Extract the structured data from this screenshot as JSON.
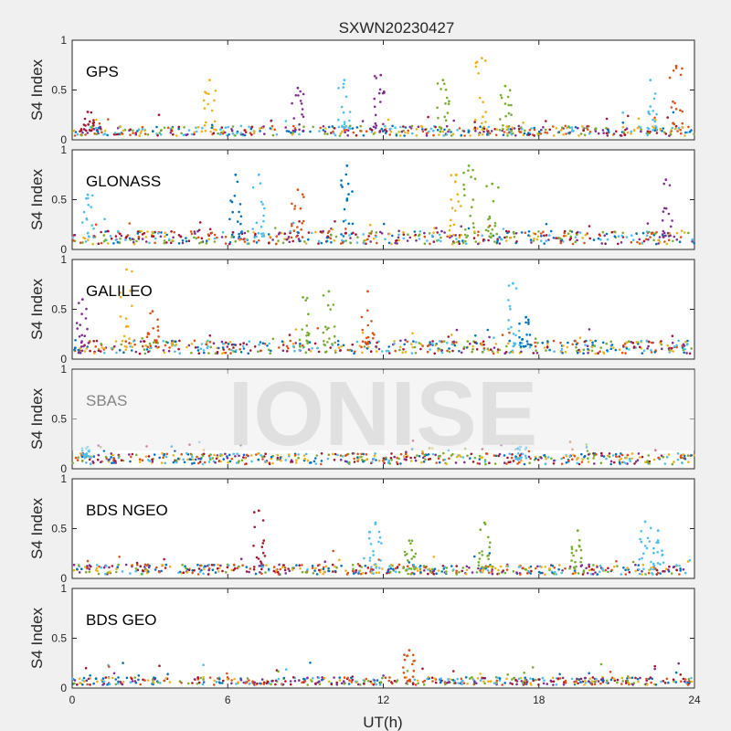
{
  "chart_data": {
    "type": "scatter",
    "title": "SXWN20230427",
    "xlabel": "UT(h)",
    "ylabel": "S4 Index",
    "xlim": [
      0,
      24
    ],
    "ylim": [
      0,
      1
    ],
    "xticks": [
      "0",
      "6",
      "12",
      "18",
      "24"
    ],
    "yticks": [
      "0",
      "0.5",
      "1"
    ],
    "watermark": "IONISE",
    "colors": [
      "#0072BD",
      "#D95319",
      "#EDB120",
      "#7E2F8E",
      "#77AC30",
      "#4DBEEE",
      "#A2142F"
    ],
    "panels": [
      {
        "name": "GPS",
        "baseline": 0.09,
        "spikes": [
          {
            "t": 0.6,
            "peak": 0.28,
            "series": 6
          },
          {
            "t": 5.3,
            "peak": 0.6,
            "series": 2
          },
          {
            "t": 8.7,
            "peak": 0.52,
            "series": 3
          },
          {
            "t": 10.5,
            "peak": 0.6,
            "series": 5
          },
          {
            "t": 11.9,
            "peak": 0.65,
            "series": 3
          },
          {
            "t": 14.3,
            "peak": 0.6,
            "series": 4
          },
          {
            "t": 15.8,
            "peak": 0.82,
            "series": 2
          },
          {
            "t": 16.7,
            "peak": 0.54,
            "series": 4
          },
          {
            "t": 22.3,
            "peak": 0.6,
            "series": 5
          },
          {
            "t": 23.3,
            "peak": 0.74,
            "series": 1
          }
        ]
      },
      {
        "name": "GLONASS",
        "baseline": 0.12,
        "spikes": [
          {
            "t": 0.6,
            "peak": 0.55,
            "series": 5
          },
          {
            "t": 6.3,
            "peak": 0.75,
            "series": 0
          },
          {
            "t": 7.2,
            "peak": 0.75,
            "series": 5
          },
          {
            "t": 8.7,
            "peak": 0.6,
            "series": 1
          },
          {
            "t": 10.6,
            "peak": 0.84,
            "series": 0
          },
          {
            "t": 14.8,
            "peak": 0.75,
            "series": 2
          },
          {
            "t": 15.3,
            "peak": 0.84,
            "series": 4
          },
          {
            "t": 16.2,
            "peak": 0.66,
            "series": 4
          },
          {
            "t": 22.9,
            "peak": 0.7,
            "series": 3
          }
        ]
      },
      {
        "name": "GALILEO",
        "baseline": 0.12,
        "spikes": [
          {
            "t": 0.4,
            "peak": 0.6,
            "series": 3
          },
          {
            "t": 2.1,
            "peak": 0.9,
            "series": 2
          },
          {
            "t": 3.1,
            "peak": 0.48,
            "series": 1
          },
          {
            "t": 8.9,
            "peak": 0.62,
            "series": 4
          },
          {
            "t": 9.9,
            "peak": 0.68,
            "series": 4
          },
          {
            "t": 11.4,
            "peak": 0.68,
            "series": 1
          },
          {
            "t": 17.0,
            "peak": 0.76,
            "series": 5
          },
          {
            "t": 17.5,
            "peak": 0.42,
            "series": 0
          }
        ]
      },
      {
        "name": "SBAS",
        "baseline": 0.1,
        "spikes": [
          {
            "t": 0.6,
            "peak": 0.22,
            "series": 5
          },
          {
            "t": 17.3,
            "peak": 0.22,
            "series": 5
          }
        ]
      },
      {
        "name": "BDS NGEO",
        "baseline": 0.09,
        "spikes": [
          {
            "t": 7.2,
            "peak": 0.68,
            "series": 6
          },
          {
            "t": 11.7,
            "peak": 0.56,
            "series": 5
          },
          {
            "t": 13.0,
            "peak": 0.38,
            "series": 4
          },
          {
            "t": 15.9,
            "peak": 0.56,
            "series": 4
          },
          {
            "t": 19.5,
            "peak": 0.48,
            "series": 4
          },
          {
            "t": 22.1,
            "peak": 0.57,
            "series": 5
          },
          {
            "t": 22.6,
            "peak": 0.48,
            "series": 5
          }
        ]
      },
      {
        "name": "BDS GEO",
        "baseline": 0.07,
        "spikes": [
          {
            "t": 13.0,
            "peak": 0.38,
            "series": 1
          }
        ]
      }
    ]
  }
}
